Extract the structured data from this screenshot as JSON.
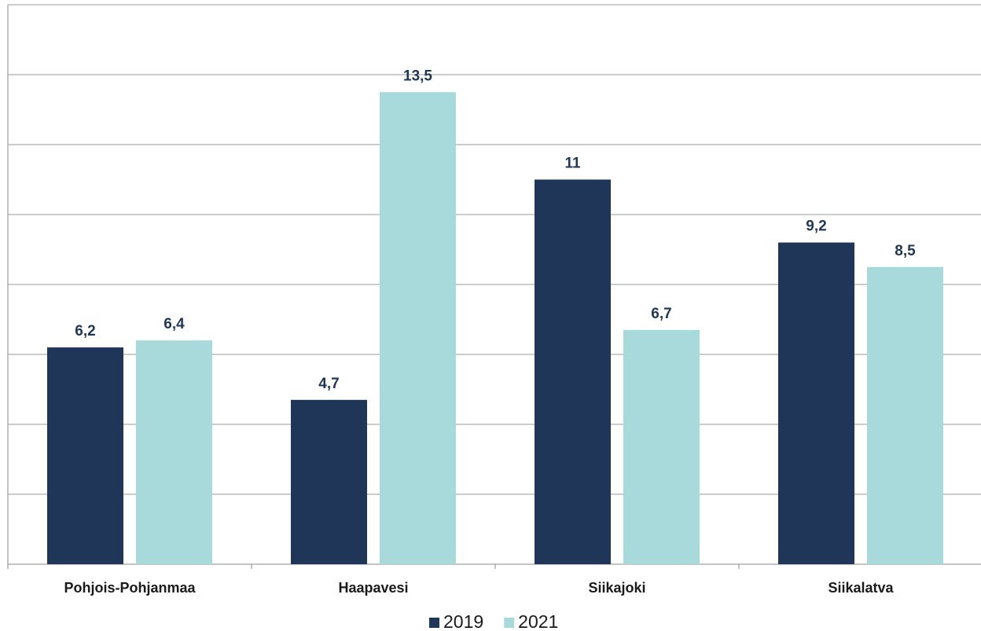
{
  "chart_data": {
    "type": "bar",
    "categories": [
      "Pohjois-Pohjanmaa",
      "Haapavesi",
      "Siikajoki",
      "Siikalatva"
    ],
    "series": [
      {
        "name": "2019",
        "color": "#1f3658",
        "values": [
          6.2,
          4.7,
          11,
          9.2
        ],
        "value_labels": [
          "6,2",
          "4,7",
          "11",
          "9,2"
        ]
      },
      {
        "name": "2021",
        "color": "#a8dadc",
        "values": [
          6.4,
          13.5,
          6.7,
          8.5
        ],
        "value_labels": [
          "6,4",
          "13,5",
          "6,7",
          "8,5"
        ]
      }
    ],
    "ylim": [
      0,
      16
    ],
    "yticks": [
      0,
      2,
      4,
      6,
      8,
      10,
      12,
      14,
      16
    ],
    "grid": true,
    "legend": "bottom"
  }
}
